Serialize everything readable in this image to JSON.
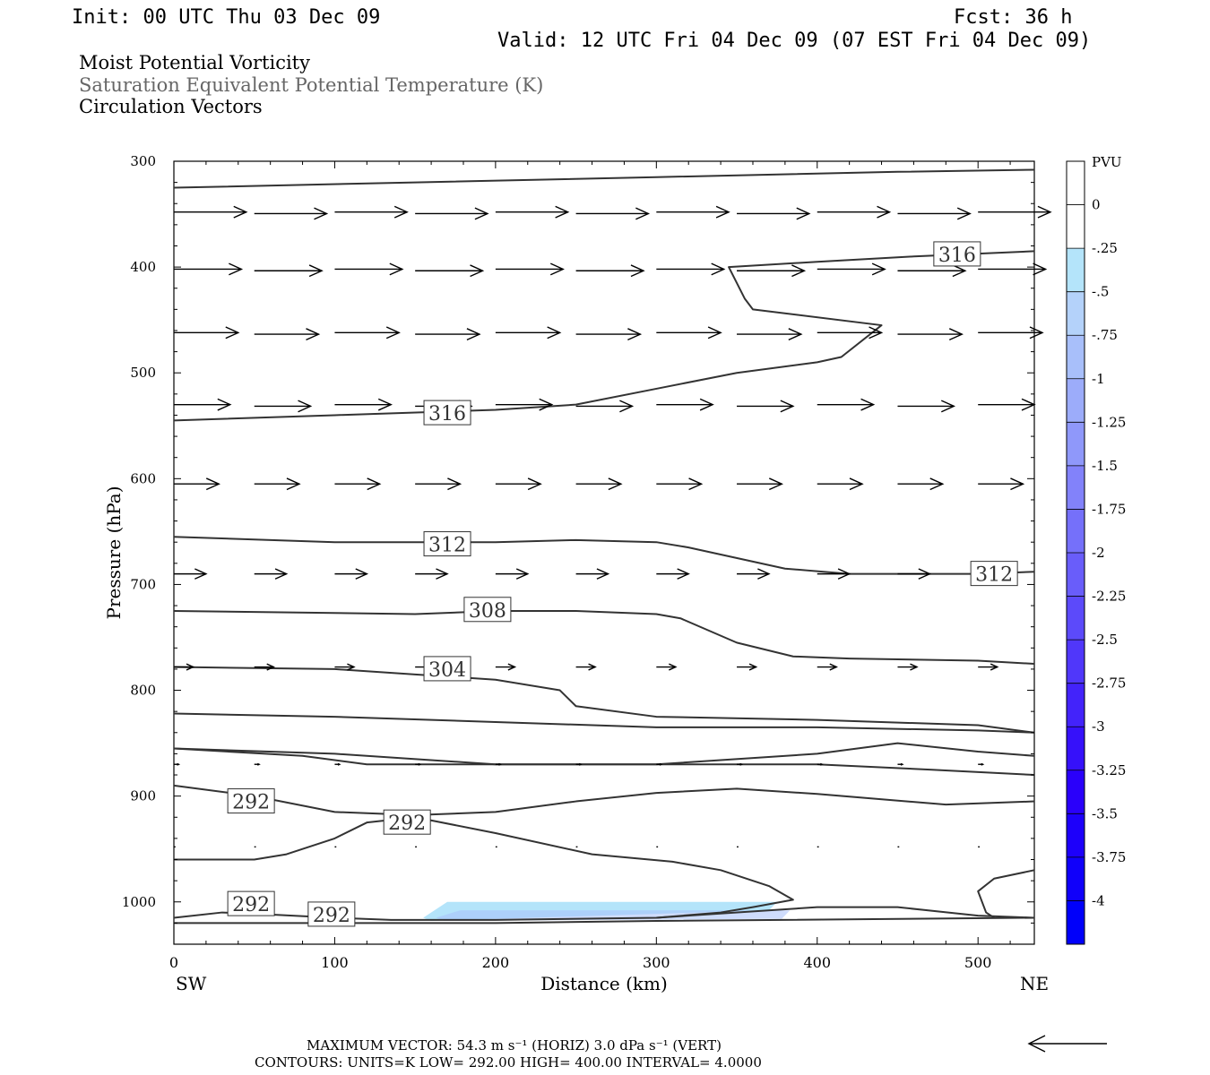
{
  "header": {
    "init": "Init: 00 UTC Thu 03 Dec 09",
    "fcst": "Fcst:   36 h",
    "valid": "Valid: 12 UTC Fri 04 Dec 09 (07 EST Fri 04 Dec 09)",
    "titles": [
      "Moist Potential Vorticity",
      "Saturation Equivalent Potential Temperature (K)",
      "Circulation Vectors"
    ]
  },
  "colors": {
    "contour": "#333333",
    "axis": "#000000",
    "title_primary": "#000000",
    "title_secondary": "#666666",
    "colorbar": [
      "#ffffff",
      "#ffffff",
      "#b4e4fa",
      "#b4d2fa",
      "#a8bffa",
      "#9cacfa",
      "#8f98fa",
      "#8282fa",
      "#7570fa",
      "#695dfa",
      "#5c4afa",
      "#5037fa",
      "#4323fa",
      "#3611fa",
      "#2a00fa",
      "#1d00fa",
      "#1000fa",
      "#0000fa"
    ]
  },
  "footer": {
    "vector_line": "MAXIMUM VECTOR:  54.3 m s⁻¹ (HORIZ)          3.0 dPa s⁻¹ (VERT)",
    "contour_line": "CONTOURS:  UNITS=K  LOW=   292.00       HIGH=  400.00       INTERVAL=     4.0000"
  },
  "chart_data": {
    "type": "cross-section",
    "xlabel": "Distance (km)",
    "ylabel": "Pressure (hPa)",
    "x_ticks": [
      0,
      100,
      200,
      300,
      400,
      500
    ],
    "x_tick_labels": [
      "0",
      "100",
      "200",
      "300",
      "400",
      "500"
    ],
    "y_ticks": [
      300,
      400,
      500,
      600,
      700,
      800,
      900,
      1000
    ],
    "y_tick_labels": [
      "300",
      "400",
      "500",
      "600",
      "700",
      "800",
      "900",
      "1000"
    ],
    "xlim": [
      0,
      535
    ],
    "ylim": [
      300,
      1040
    ],
    "y_inverted": true,
    "left_end_label": "SW",
    "right_end_label": "NE",
    "colorbar": {
      "unit_label": "PVU",
      "levels": [
        "0",
        "-.25",
        "-.5",
        "-.75",
        "-1",
        "-1.25",
        "-1.5",
        "-1.75",
        "-2",
        "-2.25",
        "-2.5",
        "-2.75",
        "-3",
        "-3.25",
        "-3.5",
        "-3.75",
        "-4"
      ]
    },
    "contours": [
      {
        "value": "",
        "points": [
          [
            0,
            325
          ],
          [
            150,
            320
          ],
          [
            300,
            315
          ],
          [
            450,
            310
          ],
          [
            535,
            308
          ]
        ]
      },
      {
        "value": "316",
        "points": [
          [
            0,
            545
          ],
          [
            100,
            540
          ],
          [
            200,
            535
          ],
          [
            250,
            530
          ],
          [
            300,
            515
          ],
          [
            350,
            500
          ],
          [
            400,
            490
          ],
          [
            415,
            485
          ],
          [
            440,
            455
          ],
          [
            360,
            440
          ],
          [
            355,
            430
          ],
          [
            345,
            400
          ],
          [
            400,
            395
          ],
          [
            460,
            390
          ],
          [
            535,
            385
          ]
        ]
      },
      {
        "value": "312",
        "points": [
          [
            0,
            655
          ],
          [
            100,
            660
          ],
          [
            200,
            660
          ],
          [
            250,
            658
          ],
          [
            300,
            660
          ],
          [
            320,
            665
          ],
          [
            380,
            685
          ],
          [
            420,
            690
          ],
          [
            500,
            690
          ],
          [
            535,
            688
          ]
        ]
      },
      {
        "value": "308",
        "points": [
          [
            0,
            725
          ],
          [
            150,
            728
          ],
          [
            200,
            725
          ],
          [
            250,
            725
          ],
          [
            300,
            728
          ],
          [
            315,
            732
          ],
          [
            350,
            755
          ],
          [
            385,
            768
          ],
          [
            420,
            770
          ],
          [
            500,
            772
          ],
          [
            535,
            775
          ]
        ]
      },
      {
        "value": "304",
        "points": [
          [
            0,
            778
          ],
          [
            100,
            780
          ],
          [
            150,
            785
          ],
          [
            200,
            790
          ],
          [
            240,
            800
          ],
          [
            250,
            815
          ],
          [
            300,
            825
          ],
          [
            400,
            828
          ],
          [
            500,
            833
          ],
          [
            535,
            840
          ]
        ]
      },
      {
        "value": "",
        "points": [
          [
            0,
            822
          ],
          [
            100,
            825
          ],
          [
            200,
            830
          ],
          [
            300,
            835
          ],
          [
            400,
            835
          ],
          [
            500,
            838
          ],
          [
            535,
            840
          ]
        ]
      },
      {
        "value": "",
        "points": [
          [
            0,
            855
          ],
          [
            100,
            860
          ],
          [
            200,
            870
          ],
          [
            300,
            870
          ],
          [
            400,
            870
          ],
          [
            470,
            875
          ],
          [
            535,
            880
          ]
        ]
      },
      {
        "value": "",
        "points": [
          [
            0,
            855
          ],
          [
            80,
            862
          ],
          [
            120,
            870
          ],
          [
            300,
            870
          ],
          [
            400,
            860
          ],
          [
            450,
            850
          ],
          [
            500,
            858
          ],
          [
            535,
            862
          ]
        ]
      },
      {
        "value": "292",
        "points": [
          [
            0,
            890
          ],
          [
            50,
            900
          ],
          [
            100,
            915
          ],
          [
            150,
            918
          ],
          [
            200,
            915
          ],
          [
            250,
            905
          ],
          [
            300,
            897
          ],
          [
            350,
            893
          ],
          [
            400,
            898
          ],
          [
            480,
            908
          ],
          [
            535,
            905
          ]
        ]
      },
      {
        "value": "292",
        "points": [
          [
            0,
            960
          ],
          [
            50,
            960
          ],
          [
            70,
            955
          ],
          [
            100,
            940
          ],
          [
            120,
            925
          ],
          [
            150,
            920
          ],
          [
            200,
            935
          ],
          [
            260,
            955
          ],
          [
            310,
            962
          ],
          [
            340,
            970
          ],
          [
            370,
            985
          ],
          [
            385,
            998
          ],
          [
            360,
            1005
          ],
          [
            340,
            1010
          ],
          [
            300,
            1015
          ]
        ]
      },
      {
        "value": "292",
        "points": [
          [
            0,
            1015
          ],
          [
            30,
            1010
          ],
          [
            60,
            1012
          ],
          [
            100,
            1015
          ],
          [
            135,
            1017
          ],
          [
            200,
            1017
          ],
          [
            300,
            1015
          ],
          [
            400,
            1005
          ],
          [
            450,
            1005
          ],
          [
            500,
            1013
          ],
          [
            535,
            1015
          ]
        ]
      },
      {
        "value": "292",
        "points": [
          [
            0,
            1020
          ],
          [
            100,
            1020
          ],
          [
            200,
            1020
          ],
          [
            300,
            1018
          ],
          [
            535,
            1015
          ]
        ]
      },
      {
        "value": "",
        "points": [
          [
            535,
            970
          ],
          [
            510,
            978
          ],
          [
            500,
            990
          ],
          [
            505,
            1010
          ],
          [
            510,
            1015
          ]
        ]
      }
    ],
    "contour_labels": [
      {
        "text": "316",
        "x": 487,
        "y": 388
      },
      {
        "text": "316",
        "x": 170,
        "y": 538
      },
      {
        "text": "312",
        "x": 170,
        "y": 662
      },
      {
        "text": "312",
        "x": 510,
        "y": 690
      },
      {
        "text": "308",
        "x": 195,
        "y": 724
      },
      {
        "text": "304",
        "x": 170,
        "y": 780
      },
      {
        "text": "292",
        "x": 48,
        "y": 905
      },
      {
        "text": "292",
        "x": 145,
        "y": 925
      },
      {
        "text": "292",
        "x": 48,
        "y": 1002
      },
      {
        "text": "292",
        "x": 98,
        "y": 1012
      }
    ],
    "pv_region": {
      "level": "-.25",
      "points": [
        [
          155,
          1015
        ],
        [
          170,
          1000
        ],
        [
          375,
          1000
        ],
        [
          370,
          1008
        ],
        [
          160,
          1018
        ]
      ]
    },
    "vectors": {
      "pressure_levels": [
        348,
        402,
        462,
        530,
        605,
        690,
        778,
        870,
        948
      ],
      "lengths_km": [
        45,
        42,
        40,
        35,
        28,
        20,
        12,
        3,
        1
      ],
      "rows": 9,
      "x_positions": [
        0,
        50,
        100,
        150,
        200,
        250,
        300,
        350,
        400,
        450,
        500
      ]
    }
  }
}
